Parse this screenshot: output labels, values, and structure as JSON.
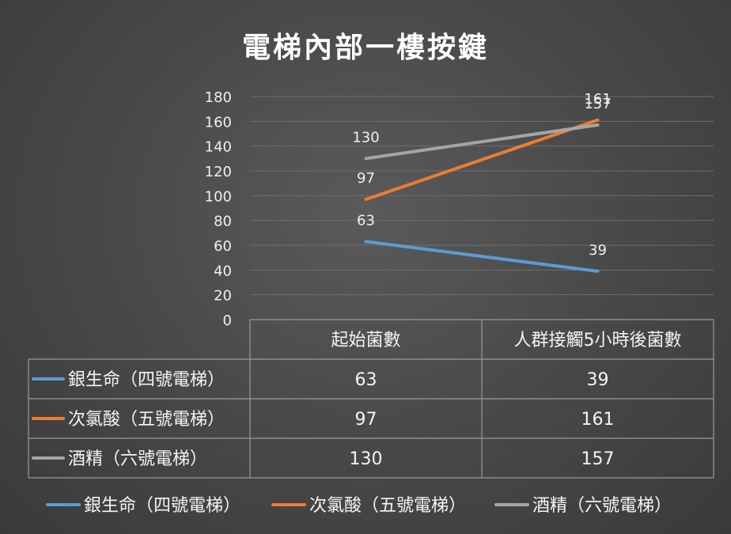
{
  "chart_data": {
    "type": "line",
    "title": "電梯內部一樓按鍵",
    "categories": [
      "起始菌數",
      "人群接觸5小時後菌數"
    ],
    "series": [
      {
        "name": "銀生命（四號電梯）",
        "values": [
          63,
          39
        ],
        "color": "#5b9bd5"
      },
      {
        "name": "次氯酸（五號電梯）",
        "values": [
          97,
          161
        ],
        "color": "#ed7d31"
      },
      {
        "name": "酒精（六號電梯）",
        "values": [
          130,
          157
        ],
        "color": "#a5a5a5"
      }
    ],
    "ylim": [
      0,
      180
    ],
    "yticks": [
      0,
      20,
      40,
      60,
      80,
      100,
      120,
      140,
      160,
      180
    ],
    "grid": true,
    "data_table": true,
    "legend": "bottom"
  }
}
